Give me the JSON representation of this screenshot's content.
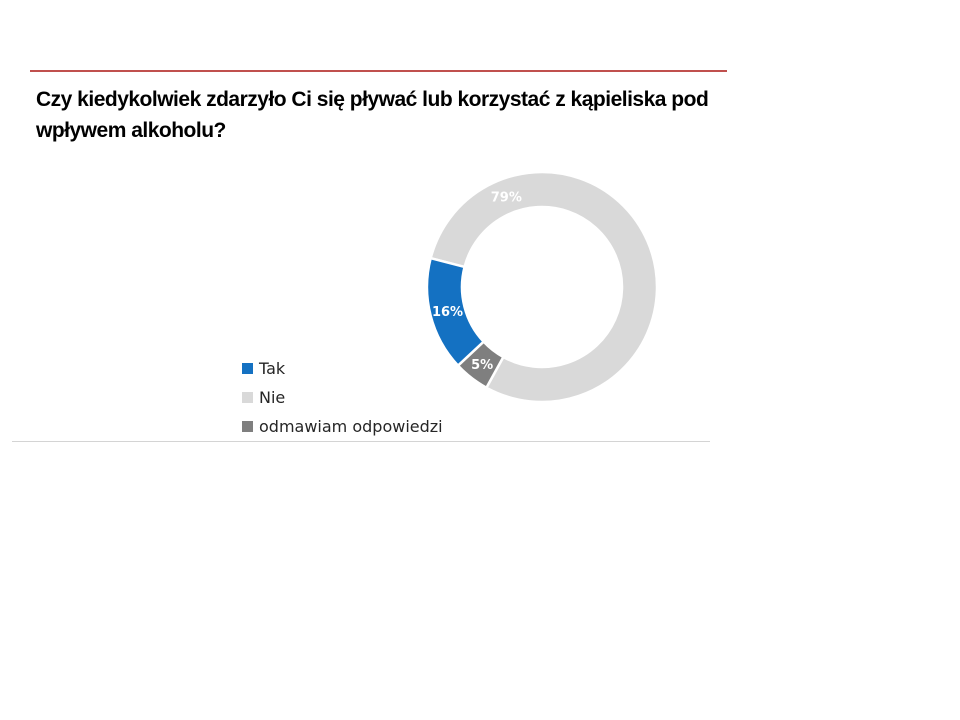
{
  "chart_data": {
    "type": "pie",
    "variant": "doughnut",
    "title": "Czy kiedykolwiek zdarzyło Ci się pływać lub korzystać z kąpieliska pod wpływem alkoholu?",
    "categories": [
      "Tak",
      "Nie",
      "odmawiam odpowiedzi"
    ],
    "values": [
      16,
      79,
      5
    ],
    "value_labels": [
      "16%",
      "79%",
      "5%"
    ],
    "unit": "%",
    "colors": [
      "#1471c2",
      "#d9d9d9",
      "#7f7f7f"
    ],
    "label_colors": [
      "#ffffff",
      "#ffffff",
      "#ffffff"
    ],
    "legend": {
      "placement": "left",
      "items": [
        "Tak",
        "Nie",
        "odmawiam odpowiedzi"
      ]
    }
  },
  "colors": {
    "title_rule": "#c0504d",
    "bottom_rule": "#d4d4d4",
    "title_text": "#000000",
    "legend_text": "#262626"
  }
}
